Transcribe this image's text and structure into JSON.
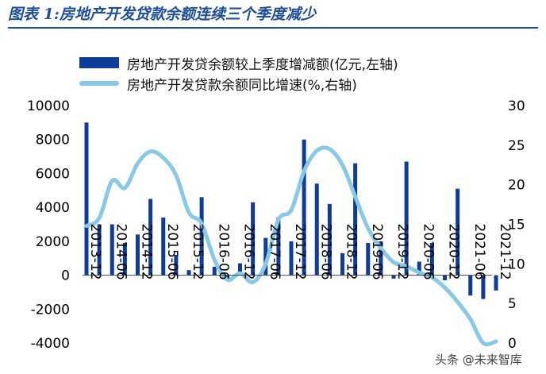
{
  "title": "图表 1:房地产开发贷款余额连续三个季度减少",
  "watermark": "头条 @未来智库",
  "colors": {
    "bar": "#0f3c99",
    "line": "#87c9e6",
    "title": "#1f4e99"
  },
  "chart_data": {
    "type": "bar+line",
    "categories": [
      "2013-12",
      "2014-03",
      "2014-06",
      "2014-09",
      "2014-12",
      "2015-03",
      "2015-06",
      "2015-09",
      "2015-12",
      "2016-03",
      "2016-06",
      "2016-09",
      "2016-12",
      "2017-03",
      "2017-06",
      "2017-09",
      "2017-12",
      "2018-03",
      "2018-06",
      "2018-09",
      "2018-12",
      "2019-03",
      "2019-06",
      "2019-09",
      "2019-12",
      "2020-03",
      "2020-06",
      "2020-09",
      "2020-12",
      "2021-03",
      "2021-06",
      "2021-09",
      "2021-12"
    ],
    "xtick_labels": [
      "2013-12",
      "2014-06",
      "2014-12",
      "2015-06",
      "2015-12",
      "2016-06",
      "2016-12",
      "2017-06",
      "2017-12",
      "2018-06",
      "2018-12",
      "2019-06",
      "2019-12",
      "2020-06",
      "2020-12",
      "2021-06",
      "2021-12"
    ],
    "series": [
      {
        "name": "房地产开发贷余额较上季度增减额(亿元,左轴)",
        "axis": "left",
        "type": "bar",
        "values": [
          9000,
          3000,
          3000,
          1900,
          2400,
          4500,
          3400,
          1200,
          300,
          4600,
          500,
          -300,
          700,
          4300,
          2200,
          3400,
          2000,
          8000,
          5400,
          4200,
          1300,
          6600,
          1900,
          2000,
          -200,
          6700,
          800,
          1900,
          -300,
          5100,
          -1200,
          -1400,
          -900
        ]
      },
      {
        "name": "房地产开发贷款余额同比增速(%,右轴)",
        "axis": "right",
        "type": "line",
        "values": [
          14.8,
          15.8,
          20.5,
          19.6,
          22.7,
          24.2,
          23.4,
          21.2,
          16.5,
          15.1,
          10.5,
          8.0,
          8.8,
          7.7,
          10.0,
          15.6,
          16.8,
          21.7,
          24.3,
          24.5,
          22.5,
          18.5,
          14.5,
          12.0,
          10.2,
          9.7,
          8.9,
          8.3,
          7.0,
          5.2,
          3.0,
          0.0,
          0.2
        ]
      }
    ],
    "left_axis": {
      "ylim": [
        -4000,
        10000
      ],
      "ticks": [
        "-4000",
        "-2000",
        "0",
        "2000",
        "4000",
        "6000",
        "8000",
        "10000"
      ]
    },
    "right_axis": {
      "ylim": [
        0,
        30
      ],
      "ticks": [
        "0",
        "5",
        "10",
        "15",
        "20",
        "25",
        "30"
      ]
    }
  }
}
